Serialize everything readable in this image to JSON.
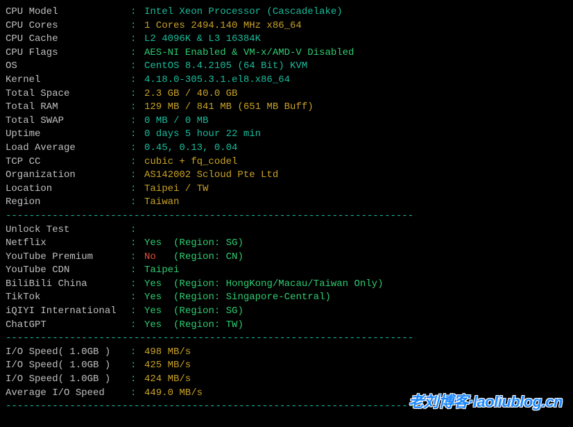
{
  "colors": {
    "background": "#000000",
    "label": "#c0c0c0",
    "colon": "#1abc9c",
    "divider": "#1abc9c",
    "cyan": "#1abc9c",
    "yellow": "#c9a227",
    "green": "#2ecc71",
    "red": "#e74c3c",
    "white": "#ffffff",
    "watermark": "#1e88ff"
  },
  "sysinfo": [
    {
      "label": "CPU Model",
      "segments": [
        {
          "text": "Intel Xeon Processor (Cascadelake)",
          "color": "cyan"
        }
      ]
    },
    {
      "label": "CPU Cores",
      "segments": [
        {
          "text": "1 Cores 2494.140 MHz x86_64",
          "color": "yellow"
        }
      ]
    },
    {
      "label": "CPU Cache",
      "segments": [
        {
          "text": "L2 4096K & L3 16384K",
          "color": "cyan"
        }
      ]
    },
    {
      "label": "CPU Flags",
      "segments": [
        {
          "text": "AES-NI Enabled & VM-x/AMD-V Disabled",
          "color": "green"
        }
      ]
    },
    {
      "label": "OS",
      "segments": [
        {
          "text": "CentOS 8.4.2105 (64 Bit) KVM",
          "color": "cyan"
        }
      ]
    },
    {
      "label": "Kernel",
      "segments": [
        {
          "text": "4.18.0-305.3.1.el8.x86_64",
          "color": "cyan"
        }
      ]
    },
    {
      "label": "Total Space",
      "segments": [
        {
          "text": "2.3 GB / 40.0 GB",
          "color": "yellow"
        }
      ]
    },
    {
      "label": "Total RAM",
      "segments": [
        {
          "text": "129 MB / 841 MB (651 MB Buff)",
          "color": "yellow"
        }
      ]
    },
    {
      "label": "Total SWAP",
      "segments": [
        {
          "text": "0 MB / 0 MB",
          "color": "cyan"
        }
      ]
    },
    {
      "label": "Uptime",
      "segments": [
        {
          "text": "0 days 5 hour 22 min",
          "color": "cyan"
        }
      ]
    },
    {
      "label": "Load Average",
      "segments": [
        {
          "text": "0.45, 0.13, 0.04",
          "color": "cyan"
        }
      ]
    },
    {
      "label": "TCP CC",
      "segments": [
        {
          "text": "cubic + fq_codel",
          "color": "yellow"
        }
      ]
    },
    {
      "label": "Organization",
      "segments": [
        {
          "text": "AS142002 Scloud Pte Ltd",
          "color": "yellow"
        }
      ]
    },
    {
      "label": "Location",
      "segments": [
        {
          "text": "Taipei / TW",
          "color": "yellow"
        }
      ]
    },
    {
      "label": "Region",
      "segments": [
        {
          "text": "Taiwan",
          "color": "yellow"
        }
      ]
    }
  ],
  "unlock": [
    {
      "label": "Unlock Test",
      "segments": []
    },
    {
      "label": "Netflix",
      "segments": [
        {
          "text": "Yes",
          "color": "green"
        },
        {
          "text": "(Region: SG)",
          "color": "green",
          "pad": 2
        }
      ]
    },
    {
      "label": "YouTube Premium",
      "segments": [
        {
          "text": "No",
          "color": "red"
        },
        {
          "text": "(Region: CN)",
          "color": "green",
          "pad": 3
        }
      ]
    },
    {
      "label": "YouTube CDN",
      "segments": [
        {
          "text": "Taipei",
          "color": "green"
        }
      ]
    },
    {
      "label": "BiliBili China",
      "segments": [
        {
          "text": "Yes",
          "color": "green"
        },
        {
          "text": "(Region: HongKong/Macau/Taiwan Only)",
          "color": "green",
          "pad": 2
        }
      ]
    },
    {
      "label": "TikTok",
      "segments": [
        {
          "text": "Yes",
          "color": "green"
        },
        {
          "text": "(Region: Singapore-Central)",
          "color": "green",
          "pad": 2
        }
      ]
    },
    {
      "label": "iQIYI International",
      "segments": [
        {
          "text": "Yes",
          "color": "green"
        },
        {
          "text": "(Region: SG)",
          "color": "green",
          "pad": 2
        }
      ]
    },
    {
      "label": "ChatGPT",
      "segments": [
        {
          "text": "Yes",
          "color": "green"
        },
        {
          "text": "(Region: TW)",
          "color": "green",
          "pad": 2
        }
      ]
    }
  ],
  "iospeed": [
    {
      "label": "I/O Speed( 1.0GB )",
      "segments": [
        {
          "text": "498 MB/s",
          "color": "yellow"
        }
      ]
    },
    {
      "label": "I/O Speed( 1.0GB )",
      "segments": [
        {
          "text": "425 MB/s",
          "color": "yellow"
        }
      ]
    },
    {
      "label": "I/O Speed( 1.0GB )",
      "segments": [
        {
          "text": "424 MB/s",
          "color": "yellow"
        }
      ]
    },
    {
      "label": "Average I/O Speed",
      "segments": [
        {
          "text": "449.0 MB/s",
          "color": "yellow"
        }
      ]
    }
  ],
  "divider_text": "----------------------------------------------------------------------",
  "watermark": "老刘博客·laoliublog.cn"
}
